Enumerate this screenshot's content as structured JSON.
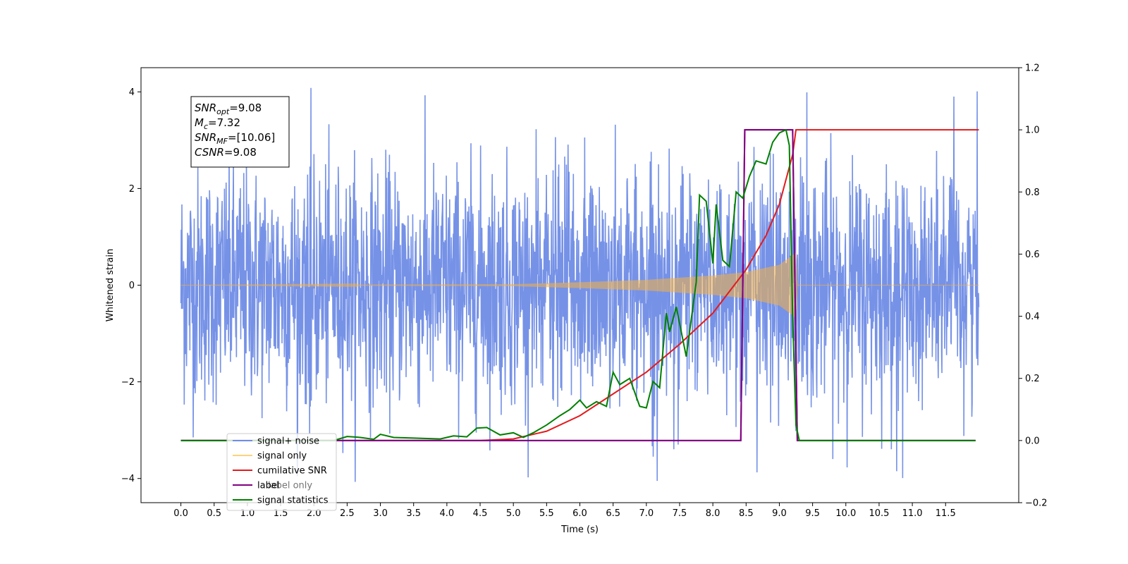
{
  "chart_data": {
    "type": "line",
    "xlabel": "Time (s)",
    "ylabel": "Whitened strain",
    "xlim": [
      -0.6,
      12.6
    ],
    "ylim": [
      -4.5,
      4.5
    ],
    "ylim_right": [
      -0.2,
      1.2
    ],
    "x_ticks": [
      0.0,
      0.5,
      1.0,
      1.5,
      2.0,
      2.5,
      3.0,
      3.5,
      4.0,
      4.5,
      5.0,
      5.5,
      6.0,
      6.5,
      7.0,
      7.5,
      8.0,
      8.5,
      9.0,
      9.5,
      10.0,
      10.5,
      11.0,
      11.5
    ],
    "x_tick_labels": [
      "0.0",
      "0.5",
      "1.0",
      "1.5",
      "2.0",
      "2.5",
      "3.0",
      "3.5",
      "4.0",
      "4.5",
      "5.0",
      "5.5",
      "6.0",
      "6.5",
      "7.0",
      "7.5",
      "8.0",
      "8.5",
      "9.0",
      "9.5",
      "10.0",
      "10.5",
      "11.0",
      "11.5"
    ],
    "y_ticks_left": [
      -4,
      -2,
      0,
      2,
      4
    ],
    "y_tick_labels_left": [
      "−4",
      "−2",
      "0",
      "2",
      "4"
    ],
    "y_ticks_right": [
      -0.2,
      0.0,
      0.2,
      0.4,
      0.6,
      0.8,
      1.0,
      1.2
    ],
    "y_tick_labels_right": [
      "−0.2",
      "0.0",
      "0.2",
      "0.4",
      "0.6",
      "0.8",
      "1.0",
      "1.2"
    ],
    "grid": false,
    "legend_position": "lower-left",
    "annotation": {
      "lines": [
        {
          "sym": "SNR",
          "sub": "opt",
          "value": "=9.08"
        },
        {
          "sym": "M",
          "sub": "c",
          "value": "=7.32"
        },
        {
          "sym": "SNR",
          "sub": "MF",
          "value": "=[10.06]"
        },
        {
          "sym": "CSNR",
          "sub": "",
          "value": "=9.08"
        }
      ]
    },
    "series": [
      {
        "name": "signal+ noise",
        "color": "#6f8ce6",
        "axis": "left",
        "kind": "noise",
        "x_range": [
          0.0,
          12.0
        ],
        "band": [
          -1.6,
          1.6
        ],
        "peak_range": [
          -4.1,
          4.1
        ]
      },
      {
        "name": "signal only",
        "color": "#f5b041",
        "axis": "left",
        "kind": "chirp",
        "x_range": [
          0.0,
          12.0
        ],
        "merger_time": 9.25,
        "envelope": [
          [
            0.0,
            0.0
          ],
          [
            5.0,
            0.02
          ],
          [
            6.0,
            0.06
          ],
          [
            7.0,
            0.11
          ],
          [
            8.0,
            0.2
          ],
          [
            8.5,
            0.27
          ],
          [
            9.0,
            0.42
          ],
          [
            9.2,
            0.62
          ],
          [
            9.25,
            0.68
          ],
          [
            9.27,
            0.0
          ],
          [
            12.0,
            0.0
          ]
        ]
      },
      {
        "name": "cumilative SNR",
        "color": "#e41a1c",
        "axis": "right",
        "points": [
          [
            0.0,
            0.0
          ],
          [
            4.5,
            0.0
          ],
          [
            5.0,
            0.005
          ],
          [
            5.5,
            0.03
          ],
          [
            6.0,
            0.08
          ],
          [
            6.5,
            0.15
          ],
          [
            7.0,
            0.22
          ],
          [
            7.5,
            0.31
          ],
          [
            8.0,
            0.41
          ],
          [
            8.5,
            0.55
          ],
          [
            8.8,
            0.66
          ],
          [
            9.0,
            0.76
          ],
          [
            9.1,
            0.84
          ],
          [
            9.2,
            0.92
          ],
          [
            9.25,
            1.0
          ],
          [
            12.0,
            1.0
          ]
        ]
      },
      {
        "name": "label",
        "color": "#800080",
        "axis": "right",
        "points": [
          [
            0.0,
            0.0
          ],
          [
            8.42,
            0.0
          ],
          [
            8.48,
            1.0
          ],
          [
            9.2,
            1.0
          ],
          [
            9.27,
            0.0
          ],
          [
            11.95,
            0.0
          ]
        ]
      },
      {
        "name": "label only",
        "color": "#800080",
        "axis": "right",
        "points": [
          [
            0.0,
            0.0
          ],
          [
            8.42,
            0.0
          ],
          [
            8.48,
            1.0
          ],
          [
            9.2,
            1.0
          ],
          [
            9.27,
            0.0
          ],
          [
            11.95,
            0.0
          ]
        ]
      },
      {
        "name": "signal statistics",
        "color": "#008000",
        "axis": "right",
        "points": [
          [
            0.0,
            0.0
          ],
          [
            2.3,
            0.0
          ],
          [
            2.5,
            0.013
          ],
          [
            2.7,
            0.01
          ],
          [
            2.9,
            0.004
          ],
          [
            3.0,
            0.02
          ],
          [
            3.2,
            0.01
          ],
          [
            3.5,
            0.008
          ],
          [
            3.9,
            0.005
          ],
          [
            4.1,
            0.015
          ],
          [
            4.3,
            0.012
          ],
          [
            4.45,
            0.04
          ],
          [
            4.6,
            0.042
          ],
          [
            4.8,
            0.018
          ],
          [
            5.0,
            0.025
          ],
          [
            5.15,
            0.01
          ],
          [
            5.3,
            0.025
          ],
          [
            5.5,
            0.05
          ],
          [
            5.7,
            0.08
          ],
          [
            5.85,
            0.1
          ],
          [
            6.0,
            0.13
          ],
          [
            6.1,
            0.105
          ],
          [
            6.25,
            0.125
          ],
          [
            6.4,
            0.11
          ],
          [
            6.5,
            0.22
          ],
          [
            6.6,
            0.18
          ],
          [
            6.75,
            0.2
          ],
          [
            6.9,
            0.11
          ],
          [
            7.0,
            0.105
          ],
          [
            7.1,
            0.19
          ],
          [
            7.2,
            0.17
          ],
          [
            7.3,
            0.41
          ],
          [
            7.35,
            0.35
          ],
          [
            7.45,
            0.43
          ],
          [
            7.6,
            0.27
          ],
          [
            7.75,
            0.51
          ],
          [
            7.8,
            0.79
          ],
          [
            7.9,
            0.77
          ],
          [
            8.0,
            0.57
          ],
          [
            8.05,
            0.76
          ],
          [
            8.15,
            0.58
          ],
          [
            8.25,
            0.56
          ],
          [
            8.35,
            0.8
          ],
          [
            8.45,
            0.78
          ],
          [
            8.55,
            0.85
          ],
          [
            8.65,
            0.9
          ],
          [
            8.8,
            0.89
          ],
          [
            8.9,
            0.96
          ],
          [
            9.0,
            0.99
          ],
          [
            9.1,
            1.0
          ],
          [
            9.15,
            0.95
          ],
          [
            9.2,
            0.4
          ],
          [
            9.25,
            0.05
          ],
          [
            9.3,
            0.0
          ],
          [
            11.95,
            0.0
          ]
        ]
      }
    ]
  }
}
